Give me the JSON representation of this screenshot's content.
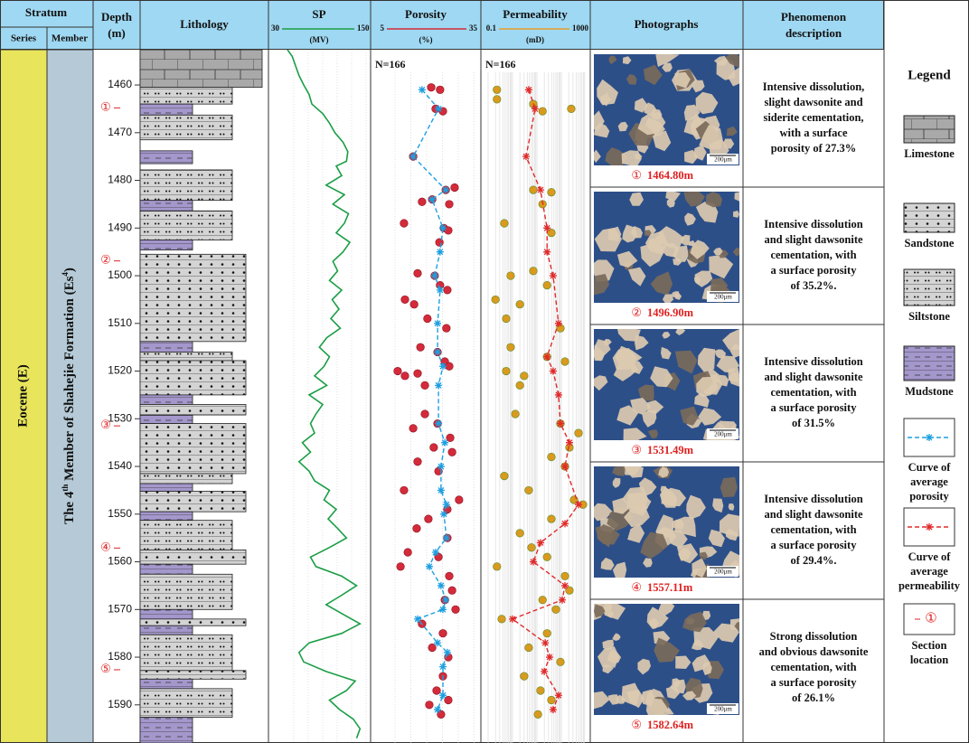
{
  "header": {
    "stratum": "Stratum",
    "series": "Series",
    "member": "Member",
    "depth": [
      "Depth",
      "(m)"
    ],
    "lithology": "Lithology",
    "photographs": "Photographs",
    "phenomenon": [
      "Phenomenon",
      "description"
    ]
  },
  "series_name": "Eocene (E)",
  "member_name": [
    "The 4",
    "th",
    " Member of Shahejie Formation (Es",
    "4",
    ")"
  ],
  "depth_axis": {
    "lim": [
      1452.6,
      1598
    ],
    "ticks": [
      1460,
      1470,
      1480,
      1490,
      1500,
      1510,
      1520,
      1530,
      1540,
      1550,
      1560,
      1570,
      1580,
      1590
    ]
  },
  "lithology": {
    "layers": [
      {
        "top": 1452.6,
        "bottom": 1460.5,
        "type": "limestone"
      },
      {
        "top": 1460.5,
        "bottom": 1464.0,
        "type": "siltstone"
      },
      {
        "top": 1464.0,
        "bottom": 1466.3,
        "type": "mudstone"
      },
      {
        "top": 1466.3,
        "bottom": 1471.5,
        "type": "siltstone"
      },
      {
        "top": 1473.8,
        "bottom": 1476.5,
        "type": "mudstone"
      },
      {
        "top": 1477.8,
        "bottom": 1484.2,
        "type": "siltstone"
      },
      {
        "top": 1484.2,
        "bottom": 1486.4,
        "type": "mudstone"
      },
      {
        "top": 1486.4,
        "bottom": 1492.5,
        "type": "siltstone"
      },
      {
        "top": 1492.5,
        "bottom": 1494.6,
        "type": "mudstone"
      },
      {
        "top": 1495.5,
        "bottom": 1513.8,
        "type": "sandstone"
      },
      {
        "top": 1513.8,
        "bottom": 1516.0,
        "type": "mudstone"
      },
      {
        "top": 1516.0,
        "bottom": 1517.8,
        "type": "siltstone"
      },
      {
        "top": 1517.8,
        "bottom": 1525.0,
        "type": "sandstone"
      },
      {
        "top": 1525.0,
        "bottom": 1527.0,
        "type": "mudstone"
      },
      {
        "top": 1527.0,
        "bottom": 1529.2,
        "type": "sandstone"
      },
      {
        "top": 1529.2,
        "bottom": 1531.0,
        "type": "mudstone"
      },
      {
        "top": 1531.0,
        "bottom": 1541.5,
        "type": "sandstone"
      },
      {
        "top": 1541.5,
        "bottom": 1543.6,
        "type": "siltstone"
      },
      {
        "top": 1543.6,
        "bottom": 1545.2,
        "type": "mudstone"
      },
      {
        "top": 1545.2,
        "bottom": 1549.5,
        "type": "sandstone"
      },
      {
        "top": 1549.5,
        "bottom": 1551.3,
        "type": "mudstone"
      },
      {
        "top": 1551.3,
        "bottom": 1557.5,
        "type": "siltstone"
      },
      {
        "top": 1557.5,
        "bottom": 1560.5,
        "type": "sandstone"
      },
      {
        "top": 1560.5,
        "bottom": 1562.6,
        "type": "mudstone"
      },
      {
        "top": 1562.6,
        "bottom": 1570.0,
        "type": "siltstone"
      },
      {
        "top": 1570.0,
        "bottom": 1572.0,
        "type": "mudstone"
      },
      {
        "top": 1572.0,
        "bottom": 1573.4,
        "type": "sandstone"
      },
      {
        "top": 1573.4,
        "bottom": 1575.3,
        "type": "mudstone"
      },
      {
        "top": 1575.3,
        "bottom": 1582.8,
        "type": "siltstone"
      },
      {
        "top": 1582.8,
        "bottom": 1584.6,
        "type": "sandstone"
      },
      {
        "top": 1584.6,
        "bottom": 1586.6,
        "type": "mudstone"
      },
      {
        "top": 1586.6,
        "bottom": 1592.6,
        "type": "siltstone"
      },
      {
        "top": 1592.6,
        "bottom": 1598.0,
        "type": "mudstone"
      }
    ]
  },
  "sp": {
    "title": "SP",
    "unit": "(MV)",
    "lim": [
      30,
      150
    ],
    "color": "#1b9e46",
    "depth": [
      1452.6,
      1454,
      1456,
      1458,
      1460,
      1462,
      1464,
      1466,
      1468,
      1470,
      1472,
      1474,
      1476,
      1477,
      1479,
      1481,
      1483,
      1485,
      1487,
      1489,
      1491,
      1493,
      1495,
      1497,
      1499,
      1501,
      1503,
      1505,
      1507,
      1509,
      1511,
      1513,
      1515,
      1517,
      1519,
      1521,
      1523,
      1525,
      1527,
      1529,
      1531,
      1533,
      1535,
      1537,
      1539,
      1541,
      1543,
      1545,
      1547,
      1549,
      1551,
      1553,
      1555,
      1557,
      1559,
      1561,
      1563,
      1565,
      1567,
      1569,
      1571,
      1573,
      1575,
      1577,
      1579,
      1581,
      1583,
      1585,
      1587,
      1589,
      1591,
      1593,
      1595,
      1597
    ],
    "values": [
      38,
      45,
      50,
      55,
      62,
      70,
      74,
      90,
      100,
      108,
      120,
      127,
      125,
      110,
      118,
      95,
      122,
      105,
      128,
      122,
      110,
      130,
      120,
      105,
      112,
      100,
      118,
      104,
      114,
      102,
      116,
      96,
      85,
      100,
      92,
      78,
      96,
      70,
      90,
      80,
      72,
      78,
      60,
      72,
      55,
      70,
      78,
      100,
      92,
      110,
      98,
      112,
      125,
      100,
      72,
      80,
      118,
      140,
      118,
      95,
      120,
      145,
      118,
      70,
      55,
      62,
      95,
      138,
      125,
      100,
      115,
      135,
      145,
      140
    ]
  },
  "porosity": {
    "title": "Porosity",
    "unit": "(%)",
    "lim": [
      5,
      35
    ],
    "color": "#d42b3a",
    "count_label": "N=166",
    "points": {
      "depth": [
        1460.5,
        1461,
        1465,
        1465.5,
        1475,
        1481.5,
        1482,
        1484,
        1484.5,
        1485,
        1489,
        1490,
        1490.5,
        1493,
        1499.5,
        1500,
        1502,
        1503,
        1505,
        1506,
        1509,
        1511,
        1515,
        1516,
        1518,
        1519,
        1520,
        1520.5,
        1521,
        1523,
        1529,
        1531,
        1532,
        1534,
        1536,
        1537,
        1539,
        1541,
        1545,
        1547,
        1549,
        1551,
        1553,
        1555,
        1558,
        1559,
        1561,
        1563,
        1566,
        1568,
        1570,
        1573,
        1575,
        1578,
        1580,
        1584,
        1587,
        1589,
        1590,
        1592
      ],
      "values": [
        21.3,
        24.1,
        22.7,
        25,
        15.6,
        28.7,
        25.9,
        21.6,
        18.4,
        27,
        12.7,
        25.3,
        26.7,
        23.9,
        17,
        22.4,
        24.1,
        26.4,
        13,
        15.9,
        20.1,
        26.1,
        17.9,
        23.3,
        25.6,
        27,
        10.7,
        17,
        13,
        19.3,
        19.3,
        23.3,
        15.6,
        27.3,
        22.1,
        27.9,
        17,
        23.6,
        12.7,
        30.1,
        26.4,
        20.4,
        16.7,
        26.4,
        13.9,
        23.6,
        11.6,
        27,
        27.9,
        25.6,
        29,
        18.4,
        25,
        21.6,
        26.7,
        25,
        23,
        26.7,
        20.7,
        24.4
      ]
    },
    "average": {
      "color": "#1d9fe0",
      "depth": [
        1461,
        1465,
        1475,
        1482,
        1484,
        1490,
        1495,
        1500,
        1503,
        1510,
        1516,
        1519,
        1523,
        1531,
        1535,
        1540,
        1545,
        1548,
        1550,
        1555,
        1558,
        1561,
        1565,
        1568,
        1570,
        1572,
        1577,
        1579,
        1582,
        1588,
        1591
      ],
      "values": [
        18.4,
        23.6,
        15.6,
        25.9,
        21.6,
        25,
        24.1,
        22.4,
        24.1,
        23.3,
        23.3,
        25,
        23.6,
        23.6,
        25.6,
        24.4,
        24.4,
        26.1,
        25.3,
        26.1,
        22.7,
        20.7,
        24.4,
        25.9,
        25,
        17,
        23.3,
        26.4,
        25,
        25,
        23.3
      ]
    }
  },
  "permeability": {
    "title": "Permeability",
    "unit": "(mD)",
    "lim": [
      0.1,
      1000
    ],
    "log": true,
    "color": "#e89a2a",
    "point_color": "#d99a1e",
    "count_label": "N=166",
    "points": {
      "depth": [
        1461,
        1463,
        1464,
        1465,
        1465.5,
        1482,
        1482.5,
        1485,
        1489,
        1491,
        1499,
        1500,
        1502,
        1505,
        1506,
        1509,
        1511,
        1515,
        1517,
        1518,
        1520,
        1521,
        1523,
        1529,
        1531,
        1533,
        1536,
        1538,
        1540,
        1542,
        1545,
        1547,
        1548,
        1551,
        1554,
        1557,
        1559,
        1561,
        1563,
        1566,
        1568,
        1570,
        1572,
        1575,
        1578,
        1581,
        1584,
        1587,
        1589,
        1592
      ],
      "values": [
        0.23,
        0.23,
        7.1,
        255,
        17,
        7.1,
        39,
        17,
        0.46,
        39,
        7.1,
        0.84,
        26,
        0.2,
        2,
        0.55,
        92,
        0.84,
        26,
        141,
        0.55,
        3,
        2,
        1.3,
        92,
        506,
        215,
        39,
        141,
        0.46,
        4.6,
        330,
        775,
        39,
        2,
        6,
        26,
        0.23,
        141,
        215,
        17,
        60,
        0.36,
        26,
        4.6,
        92,
        3,
        14,
        39,
        11
      ]
    },
    "average": {
      "color": "#e02a2a",
      "depth": [
        1461,
        1465,
        1475,
        1482,
        1490,
        1495,
        1500,
        1510,
        1517,
        1520,
        1525,
        1531,
        1535,
        1540,
        1548,
        1552,
        1556,
        1560,
        1565,
        1568,
        1572,
        1577,
        1580,
        1583,
        1588,
        1591
      ],
      "values": [
        4.6,
        8.4,
        3.6,
        14,
        26,
        26,
        46,
        77,
        26,
        46,
        77,
        92,
        215,
        141,
        506,
        141,
        14,
        7.1,
        141,
        109,
        1,
        22,
        33,
        20,
        77,
        46
      ]
    }
  },
  "samples": [
    {
      "marker": "①",
      "depth": 1464.8,
      "depth_label": "1464.80m",
      "description": [
        "Intensive dissolution,",
        "slight dawsonite and",
        "siderite cementation,",
        "with a surface",
        "porosity of 27.3%"
      ]
    },
    {
      "marker": "②",
      "depth": 1496.9,
      "depth_label": "1496.90m",
      "description": [
        "Intensive dissolution",
        "and slight dawsonite",
        "cementation, with",
        "a surface porosity",
        "of 35.2%."
      ]
    },
    {
      "marker": "③",
      "depth": 1531.49,
      "depth_label": "1531.49m",
      "description": [
        "Intensive dissolution",
        "and slight dawsonite",
        "cementation, with",
        "a surface porosity",
        "of 31.5%"
      ]
    },
    {
      "marker": "④",
      "depth": 1557.11,
      "depth_label": "1557.11m",
      "description": [
        "Intensive dissolution",
        "and slight dawsonite",
        "cementation, with",
        "a surface porosity",
        "of 29.4%."
      ]
    },
    {
      "marker": "⑤",
      "depth": 1582.64,
      "depth_label": "1582.64m",
      "description": [
        "Strong dissolution",
        "and obvious dawsonite",
        "cementation, with",
        "a surface porosity",
        "of 26.1%"
      ]
    }
  ],
  "scale_bar": "200μm",
  "legend": {
    "title": "Legend",
    "items": [
      {
        "type": "limestone",
        "label": [
          "Limestone"
        ]
      },
      {
        "type": "sandstone",
        "label": [
          "Sandstone"
        ]
      },
      {
        "type": "siltstone",
        "label": [
          "Siltstone"
        ]
      },
      {
        "type": "mudstone",
        "label": [
          "Mudstone"
        ]
      },
      {
        "type": "porosity-curve",
        "label": [
          "Curve of",
          "average",
          "porosity"
        ]
      },
      {
        "type": "permeability-curve",
        "label": [
          "Curve of",
          "average",
          "permeability"
        ]
      },
      {
        "type": "section",
        "symbol": "①",
        "label": [
          "Section",
          "location"
        ]
      }
    ]
  }
}
